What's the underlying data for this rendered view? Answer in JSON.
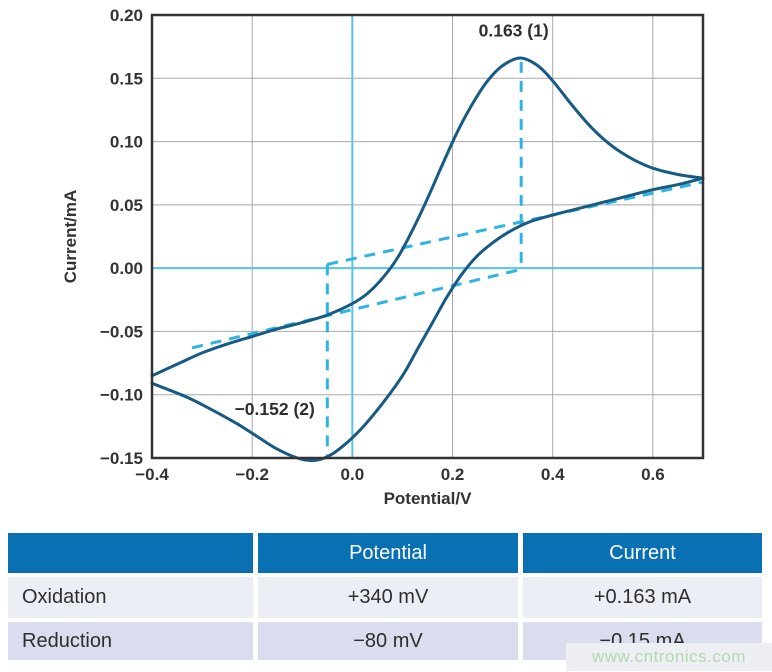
{
  "chart_data": {
    "type": "line",
    "title": "",
    "xlabel": "Potential/V",
    "ylabel": "Current/mA",
    "xlim": [
      -0.4,
      0.7
    ],
    "ylim": [
      -0.15,
      0.2
    ],
    "grid": true,
    "legend": "none",
    "x_ticks": [
      {
        "value": -0.4,
        "label": "−0.4"
      },
      {
        "value": -0.2,
        "label": "−0.2"
      },
      {
        "value": 0.0,
        "label": "0.0"
      },
      {
        "value": 0.2,
        "label": "0.2"
      },
      {
        "value": 0.4,
        "label": "0.4"
      },
      {
        "value": 0.6,
        "label": "0.6"
      }
    ],
    "y_ticks": [
      {
        "value": 0.2,
        "label": "0.20"
      },
      {
        "value": 0.15,
        "label": "0.15"
      },
      {
        "value": 0.1,
        "label": "0.10"
      },
      {
        "value": 0.05,
        "label": "0.05"
      },
      {
        "value": 0.0,
        "label": "0.00"
      },
      {
        "value": -0.05,
        "label": "−0.05"
      },
      {
        "value": -0.1,
        "label": "−0.10"
      },
      {
        "value": -0.15,
        "label": "−0.15"
      }
    ],
    "series": [
      {
        "name": "forward-anodic-sweep",
        "points": [
          [
            -0.4,
            -0.085
          ],
          [
            -0.35,
            -0.076
          ],
          [
            -0.3,
            -0.067
          ],
          [
            -0.25,
            -0.06
          ],
          [
            -0.2,
            -0.054
          ],
          [
            -0.15,
            -0.048
          ],
          [
            -0.1,
            -0.043
          ],
          [
            -0.05,
            -0.037
          ],
          [
            0.0,
            -0.028
          ],
          [
            0.03,
            -0.02
          ],
          [
            0.06,
            -0.008
          ],
          [
            0.09,
            0.008
          ],
          [
            0.12,
            0.03
          ],
          [
            0.15,
            0.055
          ],
          [
            0.18,
            0.082
          ],
          [
            0.21,
            0.108
          ],
          [
            0.24,
            0.13
          ],
          [
            0.27,
            0.148
          ],
          [
            0.3,
            0.16
          ],
          [
            0.335,
            0.166
          ],
          [
            0.37,
            0.16
          ],
          [
            0.4,
            0.148
          ],
          [
            0.44,
            0.128
          ],
          [
            0.48,
            0.11
          ],
          [
            0.52,
            0.096
          ],
          [
            0.56,
            0.086
          ],
          [
            0.6,
            0.079
          ],
          [
            0.65,
            0.074
          ],
          [
            0.7,
            0.071
          ]
        ]
      },
      {
        "name": "reverse-cathodic-sweep",
        "points": [
          [
            0.7,
            0.071
          ],
          [
            0.65,
            0.066
          ],
          [
            0.6,
            0.062
          ],
          [
            0.55,
            0.057
          ],
          [
            0.5,
            0.052
          ],
          [
            0.45,
            0.047
          ],
          [
            0.4,
            0.042
          ],
          [
            0.35,
            0.036
          ],
          [
            0.31,
            0.028
          ],
          [
            0.28,
            0.02
          ],
          [
            0.25,
            0.01
          ],
          [
            0.22,
            -0.004
          ],
          [
            0.19,
            -0.022
          ],
          [
            0.16,
            -0.043
          ],
          [
            0.13,
            -0.064
          ],
          [
            0.1,
            -0.085
          ],
          [
            0.06,
            -0.107
          ],
          [
            0.02,
            -0.126
          ],
          [
            -0.02,
            -0.141
          ],
          [
            -0.05,
            -0.149
          ],
          [
            -0.08,
            -0.152
          ],
          [
            -0.11,
            -0.15
          ],
          [
            -0.15,
            -0.143
          ],
          [
            -0.19,
            -0.133
          ],
          [
            -0.23,
            -0.123
          ],
          [
            -0.28,
            -0.112
          ],
          [
            -0.33,
            -0.102
          ],
          [
            -0.4,
            -0.091
          ]
        ]
      }
    ],
    "construction_lines": [
      {
        "name": "cathodic-baseline",
        "from": [
          -0.05,
          0.003
        ],
        "to": [
          0.7,
          0.068
        ]
      },
      {
        "name": "anodic-baseline",
        "from": [
          -0.32,
          -0.063
        ],
        "to": [
          0.337,
          -0.001
        ]
      },
      {
        "name": "anodic-peak-vertical",
        "from": [
          0.337,
          0.163
        ],
        "to": [
          0.337,
          -0.001
        ]
      },
      {
        "name": "cathodic-peak-vertical",
        "from": [
          -0.05,
          0.003
        ],
        "to": [
          -0.05,
          -0.149
        ]
      }
    ],
    "zero_lines": {
      "x": 0.0,
      "y": 0.0
    },
    "annotations": [
      {
        "text": "0.163 (1)",
        "x": 0.322,
        "y": 0.183
      },
      {
        "text": "−0.152 (2)",
        "x": -0.155,
        "y": -0.116
      }
    ],
    "peaks": {
      "oxidation": {
        "potential_v": 0.34,
        "current_ma": 0.163
      },
      "reduction": {
        "potential_v": -0.08,
        "current_ma": -0.152
      }
    }
  },
  "colors": {
    "curve": "#175a84",
    "dashed": "#2fb4e1",
    "zero_line": "#56c5e8",
    "grid": "#a8a8a8",
    "frame": "#333333",
    "chart_text": "#333333",
    "table_header_bg": "#0a70b4",
    "table_header_text": "#ffffff",
    "table_row1_bg": "#eceef5",
    "table_row2_bg": "#dadded",
    "watermark_text": "#b3d8ae"
  },
  "table": {
    "headers": [
      "",
      "Potential",
      "Current"
    ],
    "rows": [
      {
        "label": "Oxidation",
        "potential": "+340 mV",
        "current": "+0.163 mA"
      },
      {
        "label": "Reduction",
        "potential": "−80 mV",
        "current": "−0.15 mA"
      }
    ]
  },
  "watermark": "www.cntronics.com"
}
